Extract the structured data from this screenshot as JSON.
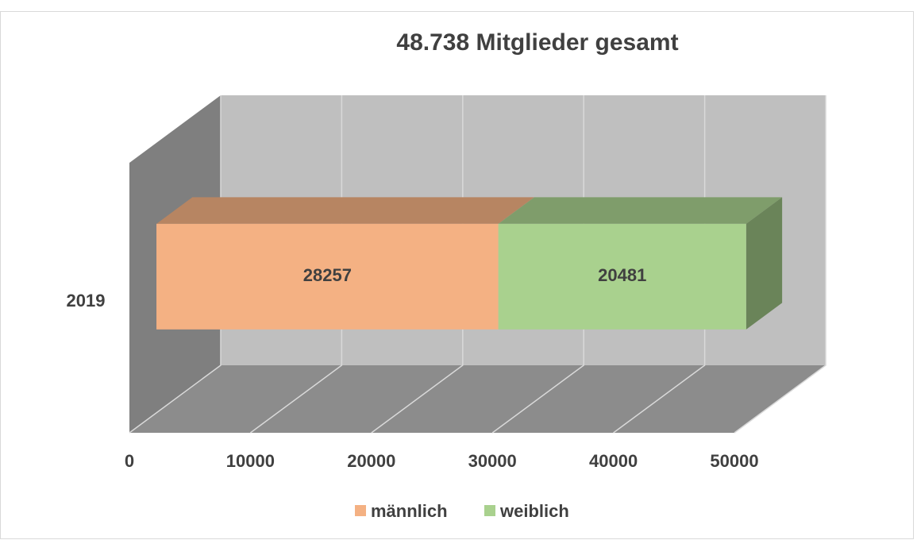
{
  "chart_data": {
    "type": "bar3d_stacked_horizontal",
    "title": "48.738 Mitglieder gesamt",
    "categories": [
      "2019"
    ],
    "series": [
      {
        "name": "männlich",
        "color": "#f4b183",
        "values": [
          28257
        ]
      },
      {
        "name": "weiblich",
        "color": "#a9d18e",
        "values": [
          20481
        ]
      }
    ],
    "xlim": [
      0,
      50000
    ],
    "xticks": [
      0,
      10000,
      20000,
      30000,
      40000,
      50000
    ],
    "grid": true,
    "legend": "bottom"
  }
}
